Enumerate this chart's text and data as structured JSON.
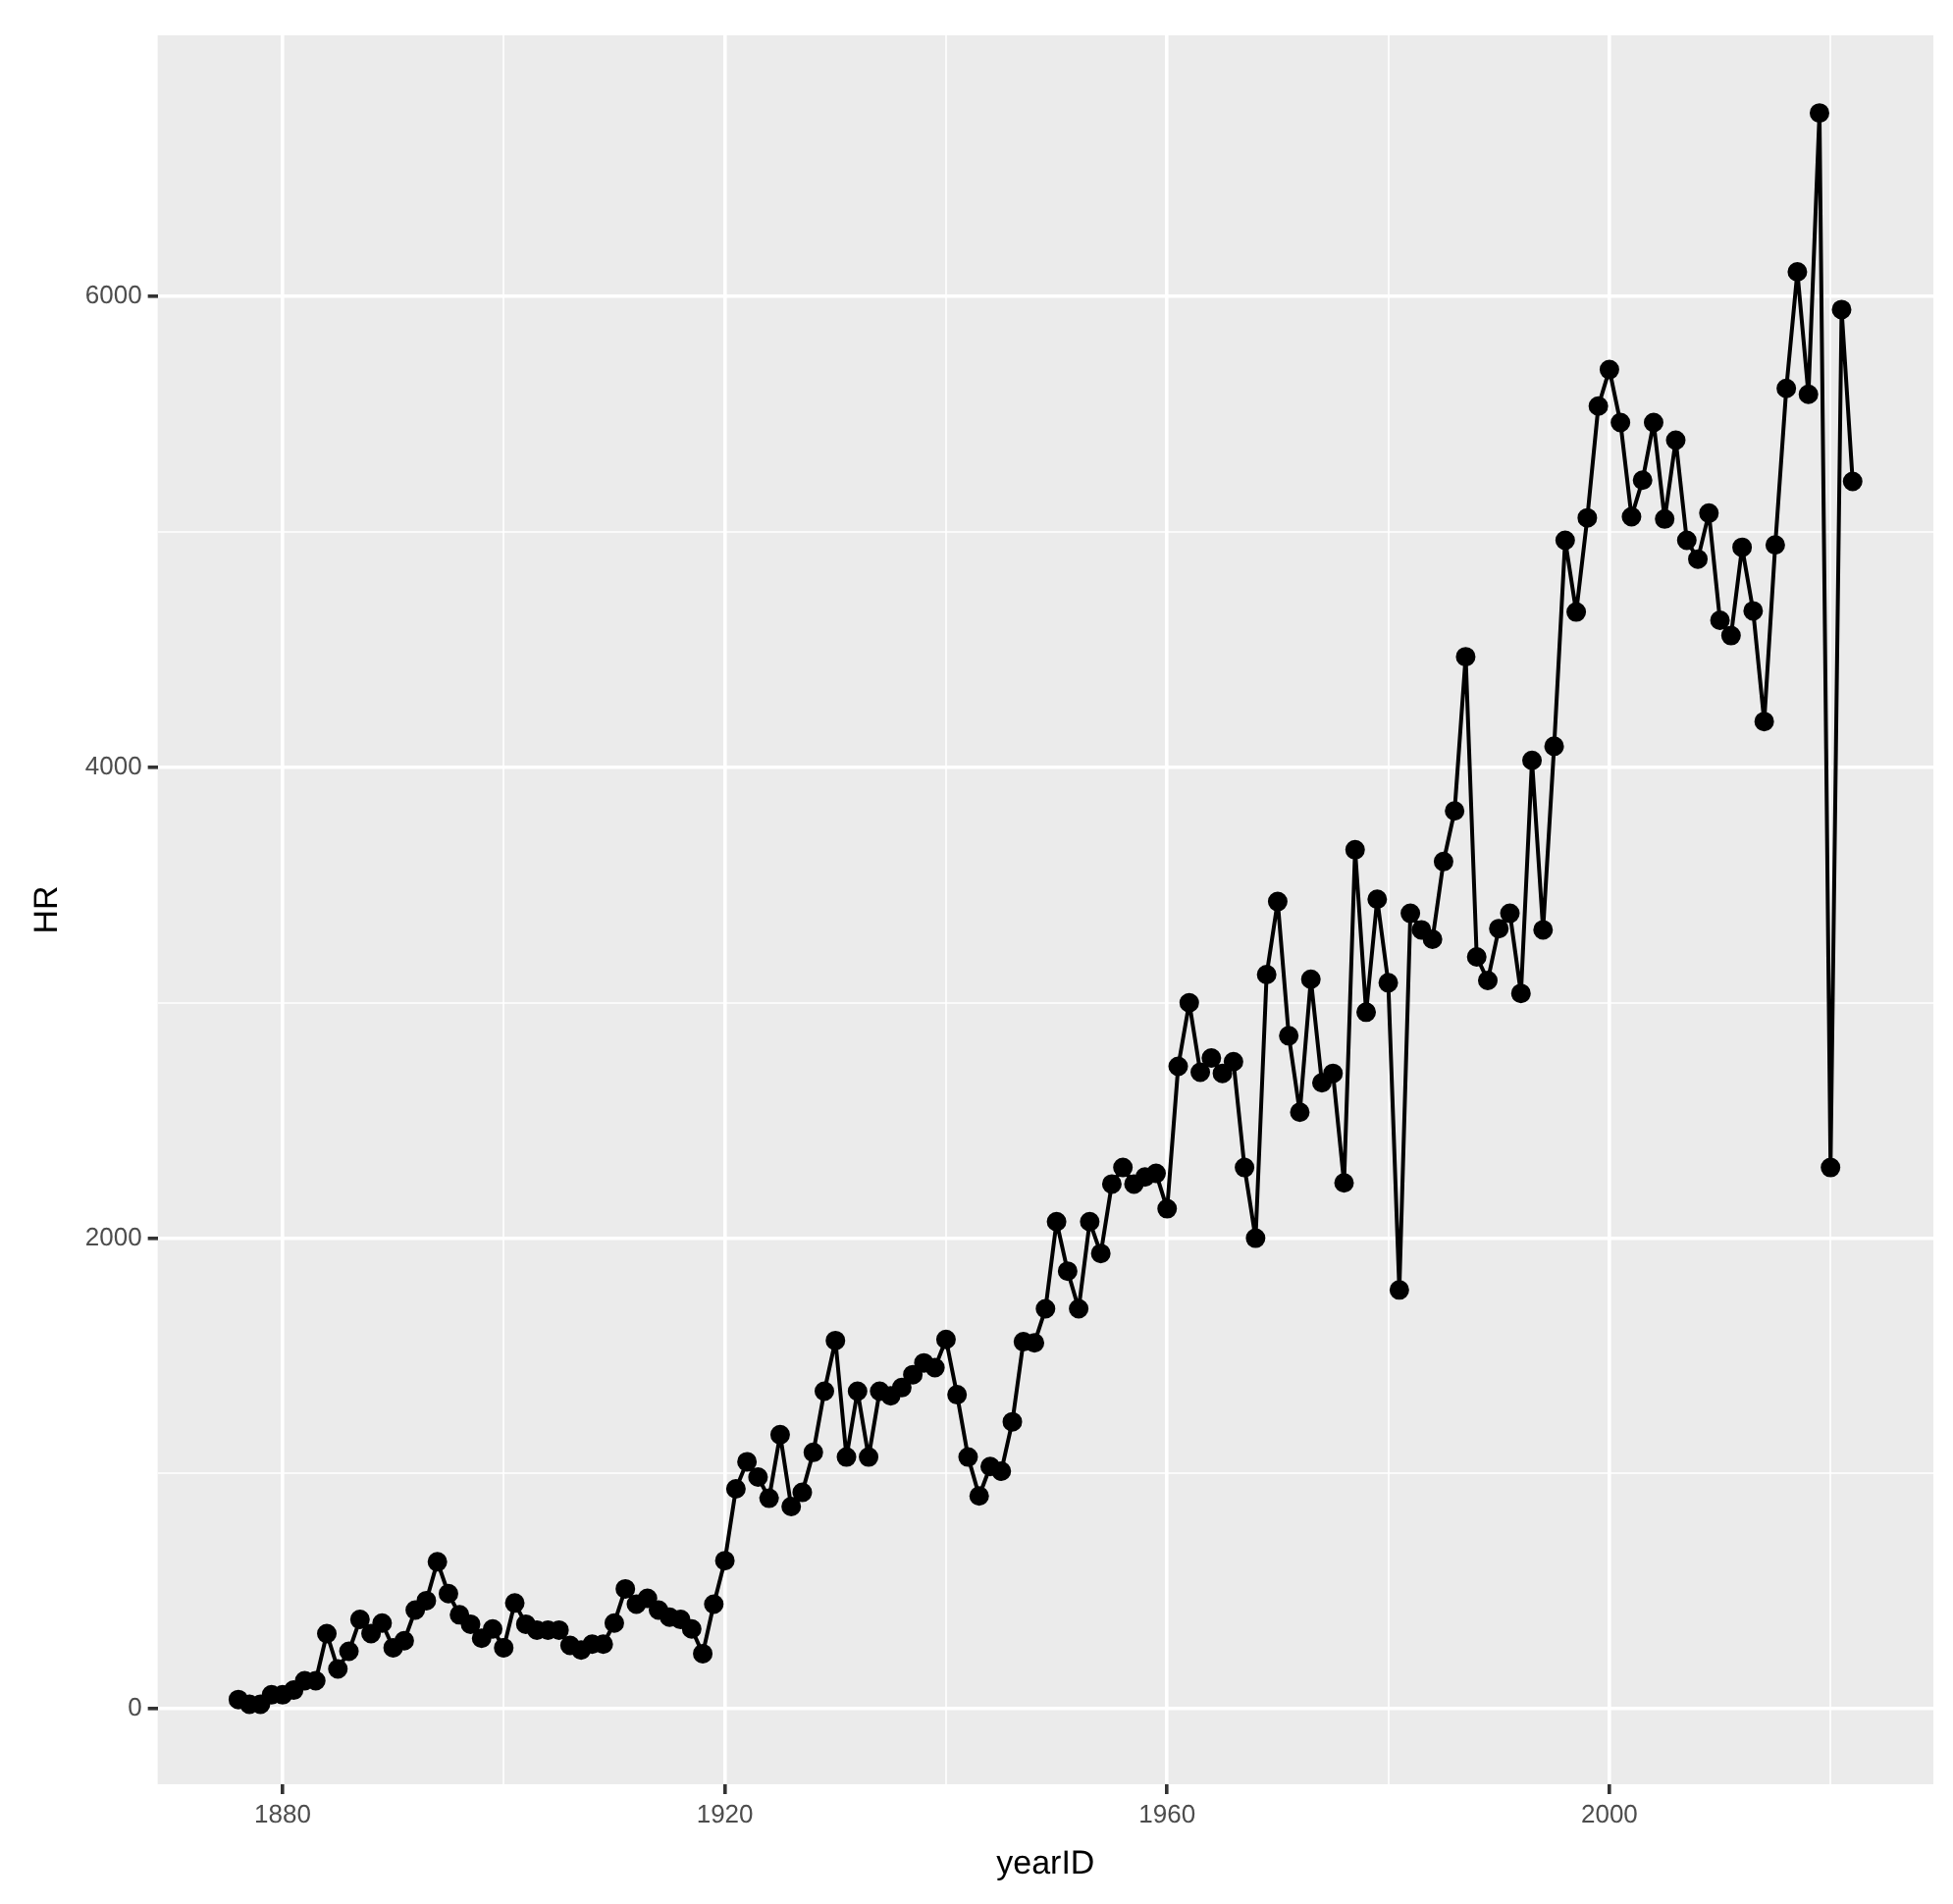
{
  "chart_data": {
    "type": "line",
    "xlabel": "yearID",
    "ylabel": "HR",
    "marker": "circle",
    "line_style": "solid",
    "grid": true,
    "legend": false,
    "xlim": [
      1868.7,
      2029.3
    ],
    "xticks": [
      1880,
      {
        "value": 1900,
        "label": null
      },
      1920,
      {
        "value": 1940,
        "label": null
      },
      1960,
      {
        "value": 1980,
        "label": null
      },
      2000,
      {
        "value": 2020,
        "label": null
      }
    ],
    "ylim": [
      -320,
      7110
    ],
    "yticks": [
      0,
      {
        "value": 1000,
        "label": null
      },
      2000,
      {
        "value": 3000,
        "label": null
      },
      4000,
      {
        "value": 5000,
        "label": null
      },
      6000
    ],
    "series": [
      {
        "color": "#000000",
        "x": [
          1876,
          1877,
          1878,
          1879,
          1880,
          1881,
          1882,
          1883,
          1884,
          1885,
          1886,
          1887,
          1888,
          1889,
          1890,
          1891,
          1892,
          1893,
          1894,
          1895,
          1896,
          1897,
          1898,
          1899,
          1900,
          1901,
          1902,
          1903,
          1904,
          1905,
          1906,
          1907,
          1908,
          1909,
          1910,
          1911,
          1912,
          1913,
          1914,
          1915,
          1916,
          1917,
          1918,
          1919,
          1920,
          1921,
          1922,
          1923,
          1924,
          1925,
          1926,
          1927,
          1928,
          1929,
          1930,
          1931,
          1932,
          1933,
          1934,
          1935,
          1936,
          1937,
          1938,
          1939,
          1940,
          1941,
          1942,
          1943,
          1944,
          1945,
          1946,
          1947,
          1948,
          1949,
          1950,
          1951,
          1952,
          1953,
          1954,
          1955,
          1956,
          1957,
          1958,
          1959,
          1960,
          1961,
          1962,
          1963,
          1964,
          1965,
          1966,
          1967,
          1968,
          1969,
          1970,
          1971,
          1972,
          1973,
          1974,
          1975,
          1976,
          1977,
          1978,
          1979,
          1980,
          1981,
          1982,
          1983,
          1984,
          1985,
          1986,
          1987,
          1988,
          1989,
          1990,
          1991,
          1992,
          1993,
          1994,
          1995,
          1996,
          1997,
          1998,
          1999,
          2000,
          2001,
          2002,
          2003,
          2004,
          2005,
          2006,
          2007,
          2008,
          2009,
          2010,
          2011,
          2012,
          2013,
          2014,
          2015,
          2016,
          2017,
          2018,
          2019,
          2020,
          2021,
          2022
        ],
        "values": [
          40,
          20,
          20,
          60,
          60,
          80,
          120,
          120,
          320,
          170,
          245,
          380,
          320,
          365,
          260,
          290,
          420,
          460,
          625,
          490,
          400,
          360,
          300,
          340,
          260,
          450,
          360,
          335,
          335,
          335,
          270,
          250,
          275,
          275,
          365,
          510,
          445,
          470,
          420,
          390,
          380,
          340,
          235,
          445,
          630,
          935,
          1050,
          985,
          895,
          1165,
          860,
          920,
          1090,
          1350,
          1565,
          1070,
          1350,
          1070,
          1350,
          1330,
          1365,
          1420,
          1470,
          1450,
          1570,
          1335,
          1070,
          905,
          1030,
          1010,
          1220,
          1560,
          1555,
          1700,
          2070,
          1860,
          1700,
          2070,
          1935,
          2230,
          2300,
          2230,
          2260,
          2275,
          2125,
          2730,
          3000,
          2705,
          2765,
          2700,
          2750,
          2300,
          2000,
          3120,
          3430,
          2860,
          2535,
          3100,
          2660,
          2700,
          2235,
          3650,
          2960,
          3440,
          3085,
          1780,
          3380,
          3310,
          3270,
          3600,
          3815,
          4470,
          3195,
          3095,
          3315,
          3380,
          3040,
          4030,
          3310,
          4090,
          4965,
          4660,
          5060,
          5535,
          5690,
          5465,
          5065,
          5220,
          5465,
          5055,
          5390,
          4965,
          4885,
          5080,
          4625,
          4560,
          4935,
          4665,
          4195,
          4945,
          5610,
          6105,
          5585,
          6780,
          2300,
          5945,
          5215
        ]
      }
    ]
  }
}
